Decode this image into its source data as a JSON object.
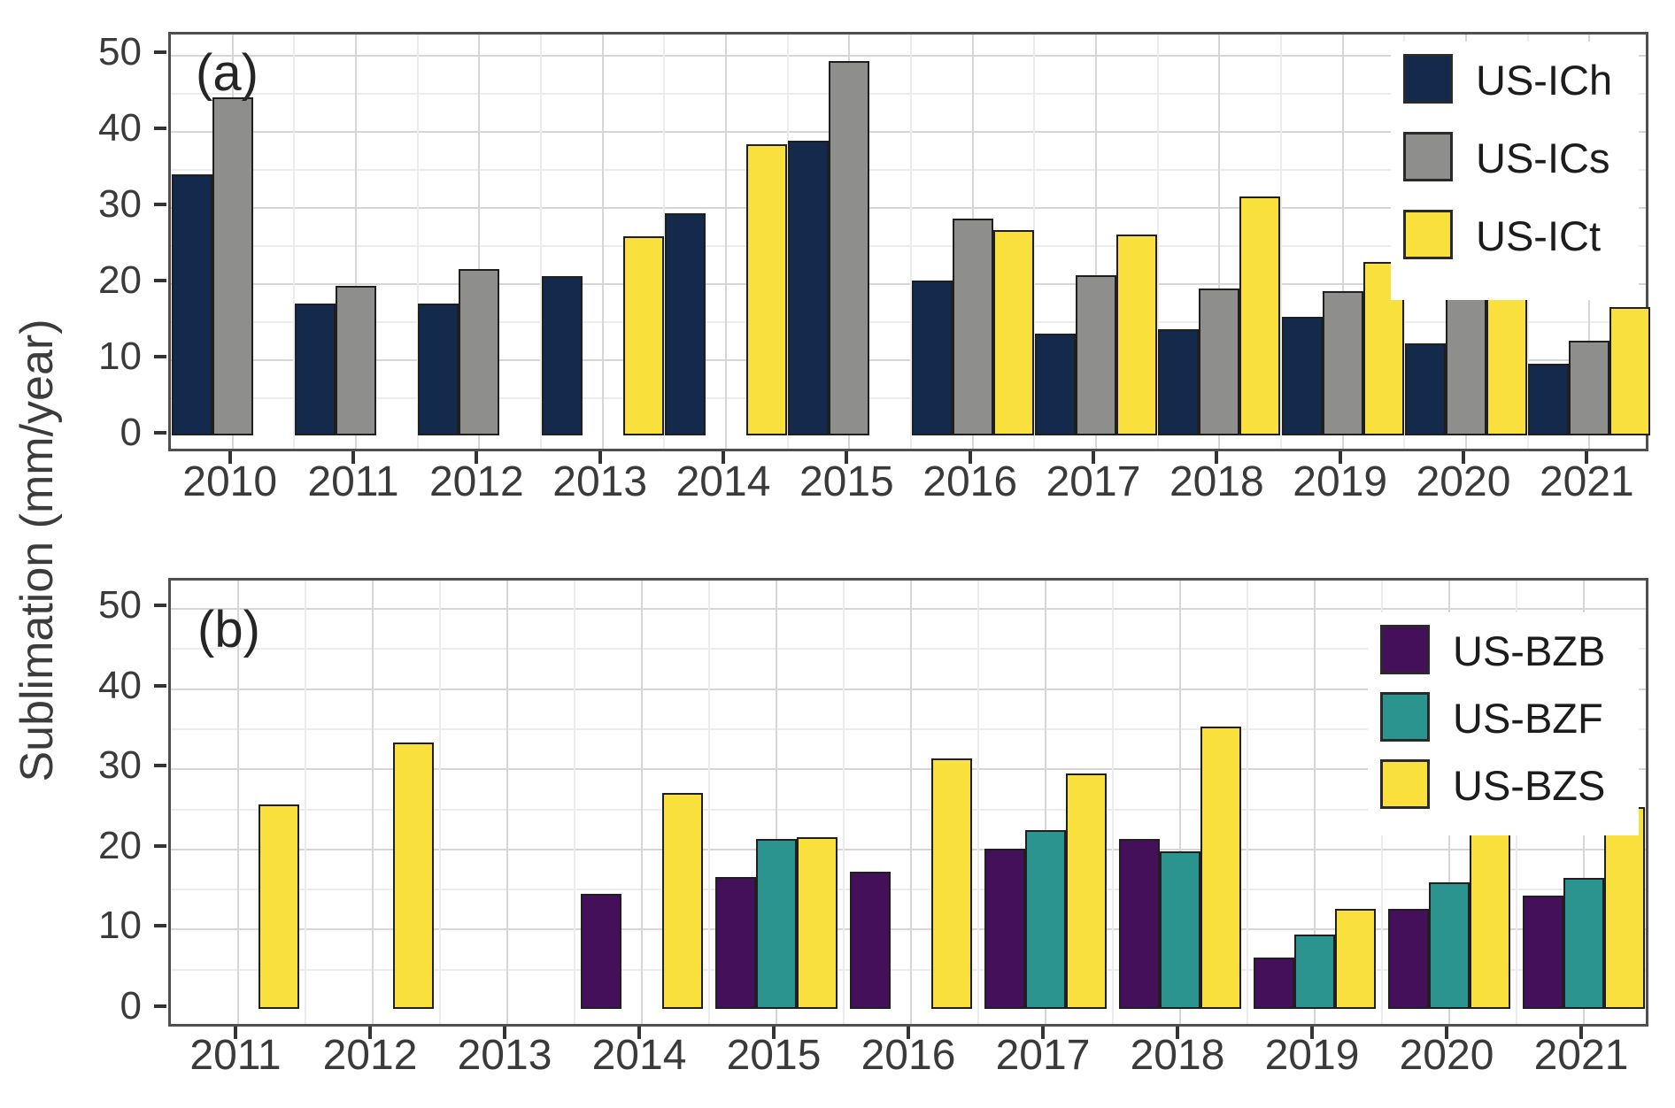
{
  "figure": {
    "ylabel": "Sublimation (mm/year)",
    "panel_a_tag": "(a)",
    "panel_b_tag": "(b)"
  },
  "colors": {
    "navy": "#142a4d",
    "gray": "#8e8e8c",
    "yellow": "#fae03c",
    "purple": "#45105a",
    "teal": "#2b948e",
    "outline": "#1f1f1f",
    "grid_major": "#d6d6d6",
    "grid_minor": "#ececec",
    "panel_border": "#4f4f4f",
    "tick_text": "#3a3a3a"
  },
  "chart_data": [
    {
      "type": "bar",
      "panel_tag": "(a)",
      "title": "",
      "xlabel": "",
      "ylabel": "Sublimation (mm/year)",
      "ylim": [
        0,
        50
      ],
      "y_ticks": [
        0,
        10,
        20,
        30,
        40,
        50
      ],
      "grid": true,
      "legend_position": "top-right",
      "categories": [
        "2010",
        "2011",
        "2012",
        "2013",
        "2014",
        "2015",
        "2016",
        "2017",
        "2018",
        "2019",
        "2020",
        "2021"
      ],
      "series": [
        {
          "name": "US-ICh",
          "color": "#142a4d",
          "values": [
            34.3,
            17.3,
            17.3,
            20.9,
            29.2,
            38.7,
            20.3,
            13.4,
            14.0,
            15.6,
            12.1,
            9.4
          ]
        },
        {
          "name": "US-ICs",
          "color": "#8e8e8c",
          "values": [
            44.4,
            19.6,
            21.9,
            null,
            null,
            49.2,
            28.5,
            21.0,
            19.3,
            19.0,
            18.3,
            12.4
          ]
        },
        {
          "name": "US-ICt",
          "color": "#fae03c",
          "values": [
            null,
            null,
            null,
            26.2,
            38.2,
            null,
            27.0,
            26.4,
            31.4,
            22.8,
            18.8,
            16.9
          ]
        }
      ]
    },
    {
      "type": "bar",
      "panel_tag": "(b)",
      "title": "",
      "xlabel": "",
      "ylabel": "Sublimation (mm/year)",
      "ylim": [
        0,
        50
      ],
      "y_ticks": [
        0,
        10,
        20,
        30,
        40,
        50
      ],
      "grid": true,
      "legend_position": "top-right",
      "categories": [
        "2011",
        "2012",
        "2013",
        "2014",
        "2015",
        "2016",
        "2017",
        "2018",
        "2019",
        "2020",
        "2021"
      ],
      "series": [
        {
          "name": "US-BZB",
          "color": "#45105a",
          "values": [
            null,
            null,
            null,
            14.4,
            16.4,
            17.1,
            20.0,
            21.2,
            6.4,
            12.5,
            14.1
          ]
        },
        {
          "name": "US-BZF",
          "color": "#2b948e",
          "values": [
            null,
            null,
            null,
            null,
            21.2,
            null,
            22.3,
            19.6,
            9.3,
            15.8,
            16.3
          ]
        },
        {
          "name": "US-BZS",
          "color": "#fae03c",
          "values": [
            25.5,
            33.2,
            null,
            26.9,
            21.4,
            31.2,
            29.4,
            35.2,
            12.5,
            25.2,
            25.2
          ]
        }
      ]
    }
  ]
}
